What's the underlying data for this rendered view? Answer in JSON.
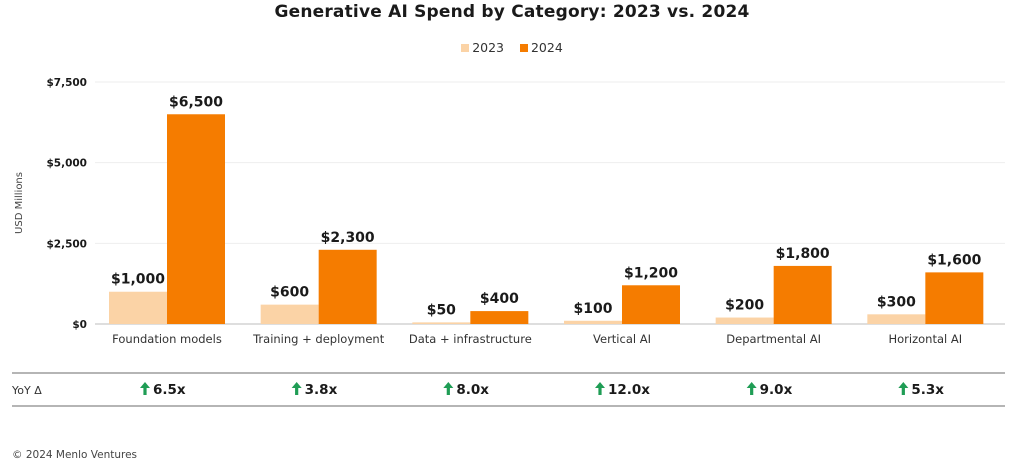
{
  "chart_data": {
    "type": "bar",
    "title": "Generative AI Spend by Category: 2023 vs. 2024",
    "ylabel": "USD Millions",
    "xlabel": "",
    "ylim": [
      0,
      7500
    ],
    "yticks": [
      0,
      2500,
      5000,
      7500
    ],
    "ytick_labels": [
      "$0",
      "$2,500",
      "$5,000",
      "$7,500"
    ],
    "grid": true,
    "legend_position": "top-center",
    "categories": [
      "Foundation models",
      "Training + deployment",
      "Data + infrastructure",
      "Vertical AI",
      "Departmental AI",
      "Horizontal AI"
    ],
    "series": [
      {
        "name": "2023",
        "color": "#fbd3a6",
        "values": [
          1000,
          600,
          50,
          100,
          200,
          300
        ],
        "labels": [
          "$1,000",
          "$600",
          "$50",
          "$100",
          "$200",
          "$300"
        ]
      },
      {
        "name": "2024",
        "color": "#f57c00",
        "values": [
          6500,
          2300,
          400,
          1200,
          1800,
          1600
        ],
        "labels": [
          "$6,500",
          "$2,300",
          "$400",
          "$1,200",
          "$1,800",
          "$1,600"
        ]
      }
    ],
    "yoy_label": "YoY Δ",
    "yoy": [
      "6.5x",
      "3.8x",
      "8.0x",
      "12.0x",
      "9.0x",
      "5.3x"
    ]
  },
  "footer": "© 2024 Menlo Ventures"
}
